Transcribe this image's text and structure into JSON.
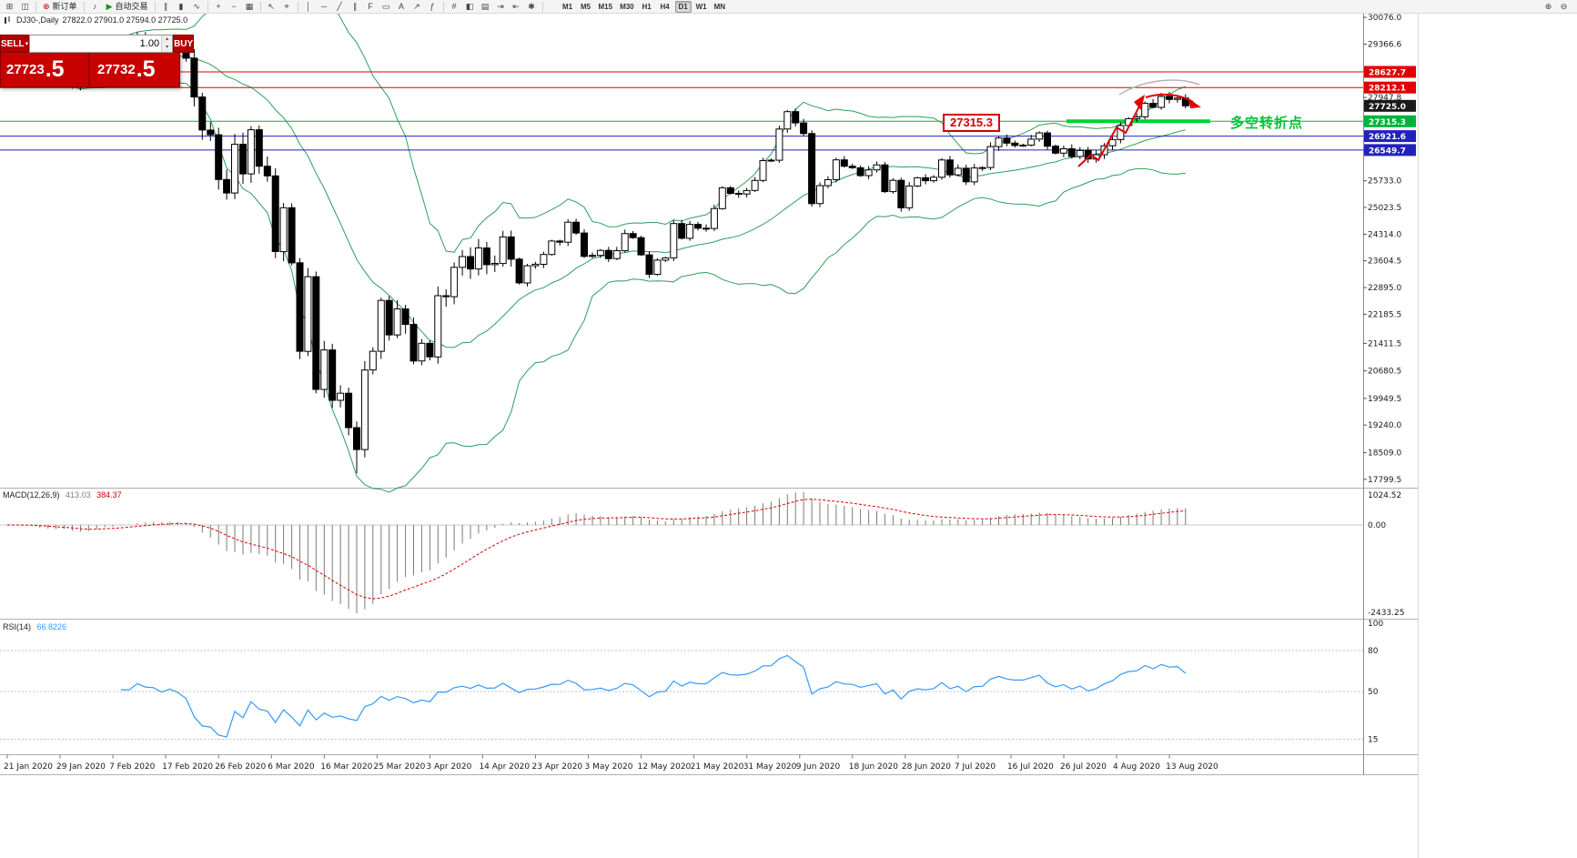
{
  "toolbar": {
    "groups": [
      {
        "items": [
          {
            "name": "new-chart-icon",
            "glyph": "⊞"
          },
          {
            "name": "profiles-icon",
            "glyph": "◫"
          }
        ]
      },
      {
        "items": [
          {
            "name": "new-order-button",
            "glyph": "⊕",
            "glyph_color": "#c00000",
            "label": "新订单"
          }
        ]
      },
      {
        "items": [
          {
            "name": "sound-icon",
            "glyph": "♪"
          },
          {
            "name": "autotrade-button",
            "glyph": "▶",
            "glyph_color": "#009900",
            "label": "自动交易"
          }
        ]
      },
      {
        "items": [
          {
            "name": "bar-chart-icon",
            "glyph": "∥"
          },
          {
            "name": "candlestick-chart-icon",
            "glyph": "▮"
          },
          {
            "name": "line-chart-icon",
            "glyph": "∿"
          }
        ]
      },
      {
        "items": [
          {
            "name": "zoom-in-icon",
            "glyph": "+"
          },
          {
            "name": "zoom-out-icon",
            "glyph": "−"
          },
          {
            "name": "tile-windows-icon",
            "glyph": "▦"
          }
        ]
      },
      {
        "items": [
          {
            "name": "cursor-icon",
            "glyph": "↖"
          },
          {
            "name": "crosshair-icon",
            "glyph": "⌖"
          }
        ]
      },
      {
        "items": [
          {
            "name": "vertical-line-icon",
            "glyph": "│"
          },
          {
            "name": "horizontal-line-icon",
            "glyph": "─"
          },
          {
            "name": "trendline-icon",
            "glyph": "╱"
          },
          {
            "name": "channel-icon",
            "glyph": "∥"
          },
          {
            "name": "fibonacci-icon",
            "glyph": "F"
          },
          {
            "name": "shapes-icon",
            "glyph": "▭"
          },
          {
            "name": "text-icon",
            "glyph": "A"
          },
          {
            "name": "arrow-tool-icon",
            "glyph": "↗"
          },
          {
            "name": "indicators-icon",
            "glyph": "ƒ"
          }
        ]
      },
      {
        "items": [
          {
            "name": "grid-icon",
            "glyph": "#"
          },
          {
            "name": "colors-icon",
            "glyph": "◧"
          },
          {
            "name": "templates-icon",
            "glyph": "▤"
          },
          {
            "name": "autoscroll-icon",
            "glyph": "⇥"
          },
          {
            "name": "chart-shift-icon",
            "glyph": "⇤"
          },
          {
            "name": "properties-icon",
            "glyph": "✱"
          }
        ]
      }
    ],
    "timeframes": [
      "M1",
      "M5",
      "M15",
      "M30",
      "H1",
      "H4",
      "D1",
      "W1",
      "MN"
    ],
    "active_timeframe": "D1",
    "right_icons": [
      {
        "name": "magnifier-zoom-in-icon",
        "glyph": "⊕"
      },
      {
        "name": "magnifier-zoom-out-icon",
        "glyph": "⊖"
      }
    ]
  },
  "chart_header": {
    "title": "DJ30-,Daily",
    "ohlc": "27822.0 27901.0 27594.0 27725.0"
  },
  "trade_panel": {
    "sell_label": "SELL",
    "buy_label": "BUY",
    "volume": "1.00",
    "caret_glyph": "▾",
    "spin_up_glyph": "▴",
    "spin_down_glyph": "▾",
    "sell_price_main": "27723",
    "sell_price_big": ".5",
    "buy_price_main": "27732",
    "buy_price_big": ".5"
  },
  "annotations": {
    "price_box": "27315.3",
    "note": "多空转折点"
  },
  "price_levels": [
    {
      "price": 28627.7,
      "label": "28627.7",
      "color": "#e00000"
    },
    {
      "price": 28212.1,
      "label": "28212.1",
      "color": "#e00000"
    },
    {
      "price": 27725.0,
      "label": "27725.0",
      "color": "#1a1a1a",
      "no_line": true,
      "current": true
    },
    {
      "price": 27315.3,
      "label": "27315.3",
      "color": "#00b33c",
      "thick": [
        1172,
        1330
      ],
      "thick_color": "#00d22e"
    },
    {
      "price": 26921.6,
      "label": "26921.6",
      "color": "#2222bb"
    },
    {
      "price": 26549.7,
      "label": "26549.7",
      "color": "#2222bb"
    }
  ],
  "axis": {
    "price_ticks": [
      "30076.0",
      "29366.6",
      "28657.2",
      "27947.8",
      "27238.4",
      "26529.0",
      "25733.0",
      "25023.5",
      "24314.0",
      "23604.5",
      "22895.0",
      "22185.5",
      "21411.5",
      "20680.5",
      "19949.5",
      "19240.0",
      "18509.0",
      "17799.5"
    ],
    "dates": [
      "21 Jan 2020",
      "29 Jan 2020",
      "7 Feb 2020",
      "17 Feb 2020",
      "26 Feb 2020",
      "6 Mar 2020",
      "16 Mar 2020",
      "25 Mar 2020",
      "3 Apr 2020",
      "14 Apr 2020",
      "23 Apr 2020",
      "3 May 2020",
      "12 May 2020",
      "21 May 2020",
      "31 May 2020",
      "9 Jun 2020",
      "18 Jun 2020",
      "28 Jun 2020",
      "7 Jul 2020",
      "16 Jul 2020",
      "26 Jul 2020",
      "4 Aug 2020",
      "13 Aug 2020"
    ]
  },
  "indicators": {
    "macd": {
      "name": "MACD(12,26,9)",
      "value_main": "413.03",
      "value_signal": "384.37",
      "axis_max": "1024.52",
      "axis_zero": "0.00",
      "axis_min": "-2433.25",
      "fast": 12,
      "slow": 26,
      "signal": 9
    },
    "rsi": {
      "name": "RSI(14)",
      "value": "66.8226",
      "period": 14,
      "axis": [
        {
          "label": "100",
          "value": 100
        },
        {
          "label": "80",
          "value": 80
        },
        {
          "label": "50",
          "value": 50
        },
        {
          "label": "15",
          "value": 15
        }
      ],
      "level_lines": [
        80,
        50,
        15
      ]
    }
  },
  "colors": {
    "up_candle": "#ffffff",
    "down_candle": "#000000",
    "band": "#2e9e5b",
    "macd_hist": "#7a7a7a",
    "macd_signal": "#dd0000",
    "rsi_line": "#3399ff",
    "panel_red": "#c80000",
    "button_red": "#b40000",
    "resistance": "#e00000",
    "support": "#2222bb",
    "pivot": "#00d22e"
  },
  "chart_data": {
    "type": "candlestick",
    "symbol": "DJ30-",
    "timeframe": "Daily",
    "last_ohlc": {
      "open": 27822.0,
      "high": 27901.0,
      "low": 27594.0,
      "close": 27725.0
    },
    "first_open": 29250,
    "closes": [
      29196,
      29186,
      29160,
      28990,
      28535,
      28722,
      28734,
      28859,
      28256,
      28399,
      28807,
      29290,
      29379,
      29102,
      29276,
      29276,
      29551,
      29423,
      29398,
      29232,
      29348,
      29219,
      28992,
      27960,
      27081,
      26957,
      25766,
      25409,
      26703,
      25917,
      27090,
      26121,
      25864,
      23851,
      25018,
      23553,
      21200,
      23185,
      20188,
      21237,
      19898,
      20087,
      19173,
      18591,
      20704,
      21200,
      22552,
      21636,
      22327,
      21917,
      20943,
      21413,
      21052,
      22679,
      22653,
      23433,
      23719,
      23390,
      23949,
      23504,
      23537,
      24242,
      23650,
      23018,
      23475,
      23515,
      23775,
      24133,
      24101,
      24633,
      24345,
      23723,
      23749,
      23883,
      23664,
      23875,
      24331,
      24221,
      23764,
      23247,
      23625,
      23685,
      24597,
      24206,
      24575,
      24474,
      24465,
      24995,
      25548,
      25400,
      25383,
      25475,
      25742,
      26269,
      26281,
      27110,
      27572,
      27272,
      26989,
      25128,
      25605,
      25763,
      26289,
      26119,
      26080,
      25871,
      26024,
      26156,
      25445,
      25745,
      25015,
      25595,
      25812,
      25734,
      25827,
      26287,
      25890,
      26067,
      25706,
      26075,
      26085,
      26642,
      26870,
      26734,
      26671,
      26680,
      26840,
      27005,
      26652,
      26469,
      26584,
      26379,
      26539,
      26313,
      26428,
      26664,
      26828,
      27201,
      27386,
      27433,
      27791,
      27686,
      27976,
      27896,
      27931,
      27725
    ],
    "low_overrides": {
      "43": 17960
    },
    "bollinger": {
      "period": 20,
      "deviation": 2
    },
    "y_range_est": [
      17600,
      30200
    ]
  }
}
